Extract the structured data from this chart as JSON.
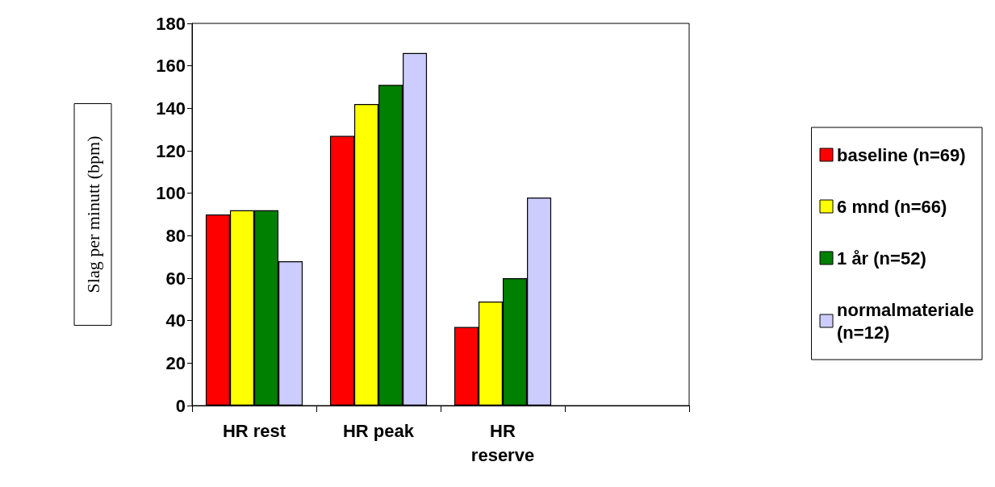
{
  "chart_data": {
    "type": "bar",
    "ylabel": "Slag per minutt (bpm)",
    "categories": [
      "HR rest",
      "HR peak",
      "HR\nreserve",
      null
    ],
    "series": [
      {
        "name": "baseline (n=69)",
        "color": "#ff0000",
        "values": [
          90,
          127,
          37,
          null
        ]
      },
      {
        "name": "6 mnd (n=66)",
        "color": "#ffff00",
        "values": [
          92,
          142,
          49,
          null
        ]
      },
      {
        "name": "1 år (n=52)",
        "color": "#008000",
        "values": [
          92,
          151,
          60,
          null
        ]
      },
      {
        "name": "normalmateriale\n(n=12)",
        "color": "#ccccff",
        "values": [
          68,
          166,
          98,
          null
        ]
      }
    ],
    "ylim": [
      0,
      180
    ],
    "yticks": [
      0,
      20,
      40,
      60,
      80,
      100,
      120,
      140,
      160,
      180
    ],
    "grid": false,
    "legend": "right"
  }
}
